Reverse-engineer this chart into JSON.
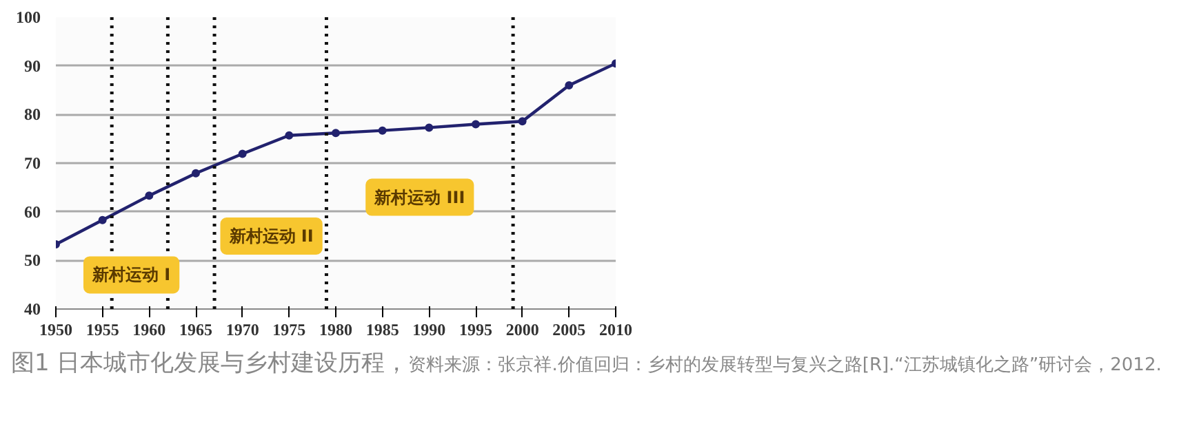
{
  "chart_data": {
    "type": "line",
    "title": "图1 日本城市化发展与乡村建设历程，",
    "x": [
      1950,
      1955,
      1960,
      1965,
      1970,
      1975,
      1980,
      1985,
      1990,
      1995,
      2000,
      2005,
      2010
    ],
    "series": [
      {
        "color": "#22226e",
        "values": [
          53.3,
          58.3,
          63.3,
          67.9,
          71.9,
          75.7,
          76.2,
          76.7,
          77.3,
          78.0,
          78.6,
          86.0,
          90.5
        ]
      }
    ],
    "xlim": [
      1950,
      2010
    ],
    "xticks": [
      1950,
      1955,
      1960,
      1965,
      1970,
      1975,
      1980,
      1985,
      1990,
      1995,
      2000,
      2005,
      2010
    ],
    "ylim": [
      40,
      100
    ],
    "yticks": [
      40,
      50,
      60,
      70,
      80,
      90,
      100
    ],
    "grid": "y",
    "marker": "circle",
    "line_style": "solid",
    "ref_lines": [
      {
        "axis": "x",
        "value": 1956,
        "line_style": "dotted",
        "color": "#111111"
      },
      {
        "axis": "x",
        "value": 1962,
        "line_style": "dotted",
        "color": "#111111"
      },
      {
        "axis": "x",
        "value": 1967,
        "line_style": "dotted",
        "color": "#111111"
      },
      {
        "axis": "x",
        "value": 1979,
        "line_style": "dotted",
        "color": "#111111"
      },
      {
        "axis": "x",
        "value": 1999,
        "line_style": "dotted",
        "color": "#111111"
      }
    ],
    "annotations": [
      "新村运动 I",
      "新村运动 II",
      "新村运动 III",
      "资料来源：张京祥.价值回归：乡村的发展转型与复兴之路[R].“江苏城镇化之路”研讨会，2012."
    ]
  }
}
